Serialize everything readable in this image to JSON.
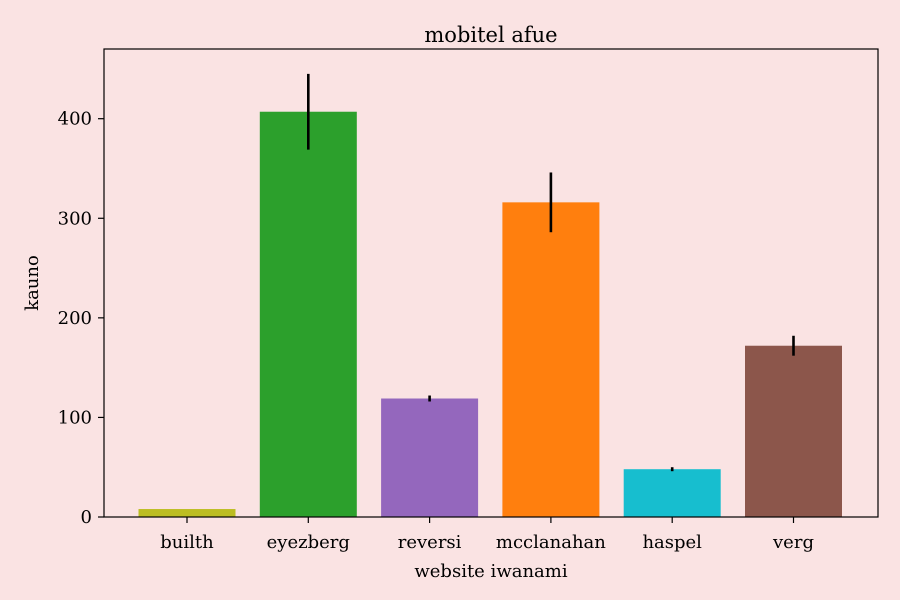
{
  "chart_data": {
    "type": "bar",
    "title": "mobitel afue",
    "xlabel": "website iwanami",
    "ylabel": "kauno",
    "ylim": [
      0,
      470
    ],
    "yticks": [
      0,
      100,
      200,
      300,
      400
    ],
    "categories": [
      "builth",
      "eyezberg",
      "reversi",
      "mcclanahan",
      "haspel",
      "verg"
    ],
    "values": [
      8,
      407,
      119,
      316,
      48,
      172
    ],
    "errors": [
      0,
      38,
      3,
      30,
      2,
      10
    ],
    "colors": [
      "#bcbd22",
      "#2ca02c",
      "#9467bd",
      "#ff7f0e",
      "#17becf",
      "#8c564b"
    ],
    "grid": false,
    "legend": "none"
  }
}
